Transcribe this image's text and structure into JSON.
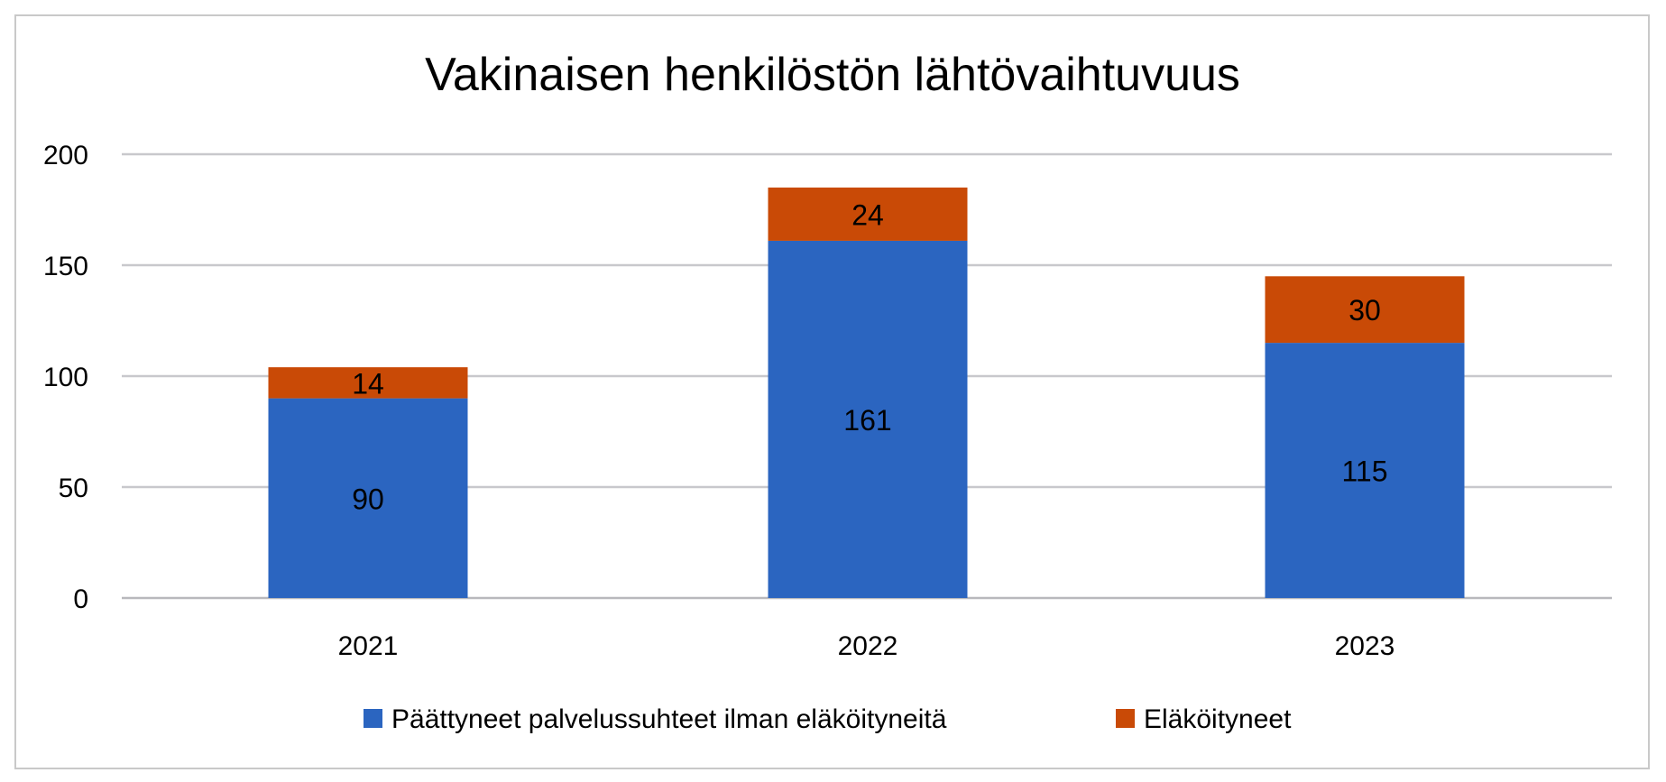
{
  "chart_data": {
    "type": "bar",
    "stacked": true,
    "title": "Vakinaisen henkilöstön lähtövaihtuvuus",
    "xlabel": "",
    "ylabel": "",
    "categories": [
      "2021",
      "2022",
      "2023"
    ],
    "ylim": [
      0,
      200
    ],
    "yticks": [
      0,
      50,
      100,
      150,
      200
    ],
    "grid": true,
    "legend_position": "bottom",
    "series": [
      {
        "name": "Päättyneet palvelussuhteet ilman eläköityneitä",
        "values": [
          90,
          161,
          115
        ],
        "color": "#2b65c0"
      },
      {
        "name": "Eläköityneet",
        "values": [
          14,
          24,
          30
        ],
        "color": "#c94a06"
      }
    ]
  }
}
